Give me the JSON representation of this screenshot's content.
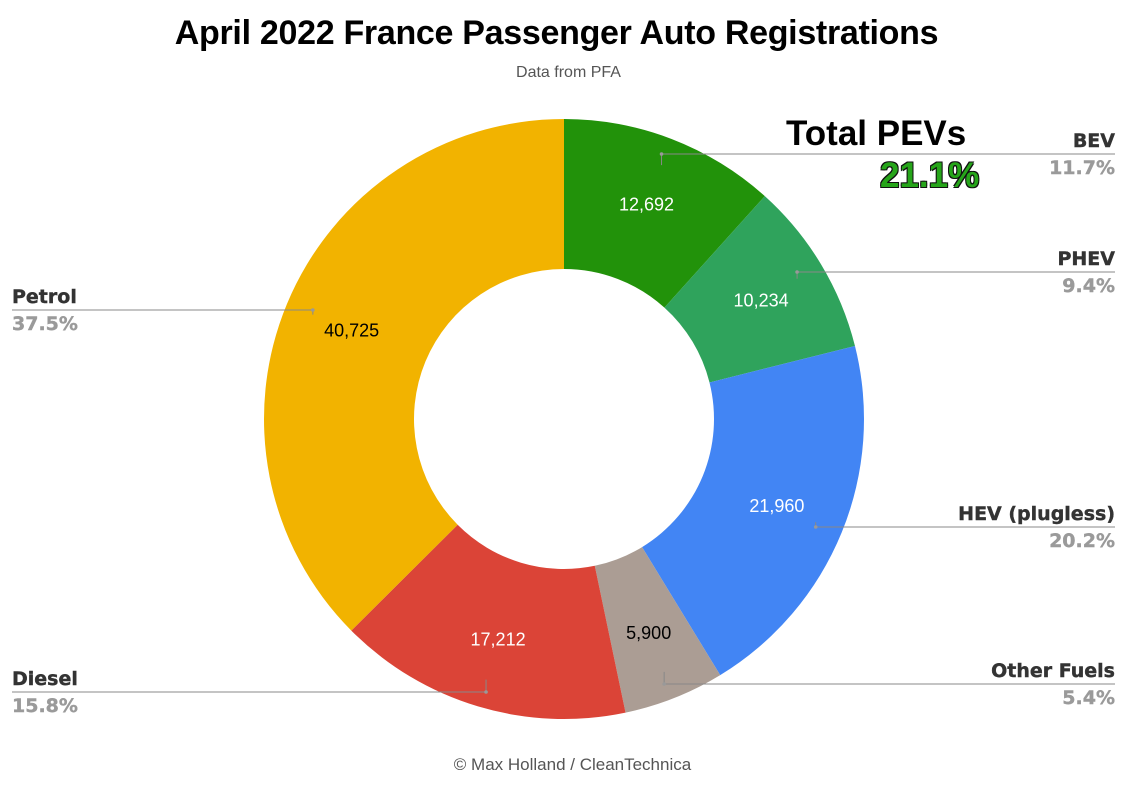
{
  "title": "April 2022 France Passenger Auto Registrations",
  "subtitle": "Data from PFA",
  "callout": {
    "title": "Total PEVs",
    "value": "21.1%"
  },
  "footer": "© Max Holland / CleanTechnica",
  "colors": {
    "value_label_light": "#ffffff",
    "value_label_dark": "#000000",
    "callout_value": "#26a51a"
  },
  "chart_data": {
    "type": "pie",
    "donut": true,
    "start_angle_deg": 0,
    "direction": "clockwise",
    "slices": [
      {
        "label": "BEV",
        "value": 12692,
        "value_label": "12,692",
        "percent_label": "11.7%",
        "color": "#22920a",
        "value_text_color": "#ffffff"
      },
      {
        "label": "PHEV",
        "value": 10234,
        "value_label": "10,234",
        "percent_label": "9.4%",
        "color": "#2fa35c",
        "value_text_color": "#ffffff"
      },
      {
        "label": "HEV (plugless)",
        "value": 21960,
        "value_label": "21,960",
        "percent_label": "20.2%",
        "color": "#4285f4",
        "value_text_color": "#ffffff"
      },
      {
        "label": "Other Fuels",
        "value": 5900,
        "value_label": "5,900",
        "percent_label": "5.4%",
        "color": "#ab9d94",
        "value_text_color": "#000000"
      },
      {
        "label": "Diesel",
        "value": 17212,
        "value_label": "17,212",
        "percent_label": "15.8%",
        "color": "#db4437",
        "value_text_color": "#ffffff"
      },
      {
        "label": "Petrol",
        "value": 40725,
        "value_label": "40,725",
        "percent_label": "37.5%",
        "color": "#f2b300",
        "value_text_color": "#000000"
      }
    ]
  }
}
